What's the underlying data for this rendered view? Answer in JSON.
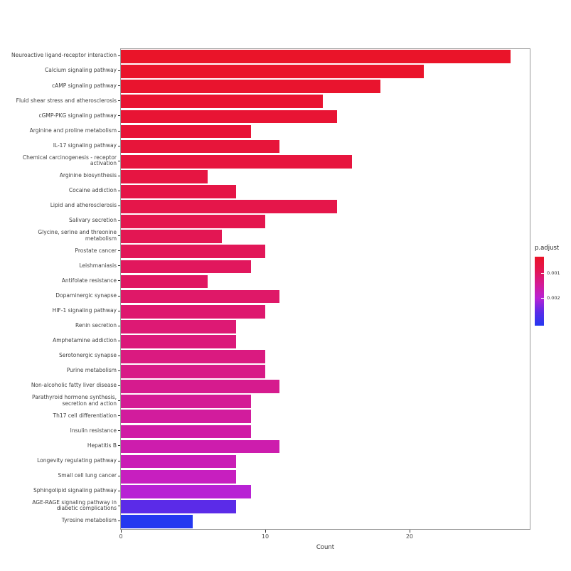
{
  "chart_data": {
    "type": "bar",
    "orientation": "horizontal",
    "title": "",
    "xlabel": "Count",
    "ylabel": "",
    "xlim": [
      0,
      28.33
    ],
    "x_ticks": [
      0,
      10,
      20
    ],
    "grid": false,
    "legend_position": "right",
    "categories": [
      "Neuroactive ligand-receptor interaction",
      "Calcium signaling pathway",
      "cAMP signaling pathway",
      "Fluid shear stress and atherosclerosis",
      "cGMP-PKG signaling pathway",
      "Arginine and proline metabolism",
      "IL-17 signaling pathway",
      "Chemical carcinogenesis - receptor activation",
      "Arginine biosynthesis",
      "Cocaine addiction",
      "Lipid and atherosclerosis",
      "Salivary secretion",
      "Glycine, serine and threonine metabolism",
      "Prostate cancer",
      "Leishmaniasis",
      "Antifolate resistance",
      "Dopaminergic synapse",
      "HIF-1 signaling pathway",
      "Renin secretion",
      "Amphetamine addiction",
      "Serotonergic synapse",
      "Purine metabolism",
      "Non-alcoholic fatty liver disease",
      "Parathyroid hormone synthesis, secretion and action",
      "Th17 cell differentiation",
      "Insulin resistance",
      "Hepatitis B",
      "Longevity regulating pathway",
      "Small cell lung cancer",
      "Sphingolipid signaling pathway",
      "AGE-RAGE signaling pathway in diabetic complications",
      "Tyrosine metabolism"
    ],
    "values": [
      27,
      21,
      18,
      14,
      15,
      9,
      11,
      16,
      6,
      8,
      15,
      10,
      7,
      10,
      9,
      6,
      11,
      10,
      8,
      8,
      10,
      10,
      11,
      9,
      9,
      9,
      11,
      8,
      8,
      9,
      8,
      5
    ],
    "colors": [
      "#EA1429",
      "#EA142B",
      "#E9142E",
      "#E91431",
      "#E81434",
      "#E81437",
      "#E7153A",
      "#E7153E",
      "#E61542",
      "#E51546",
      "#E5164A",
      "#E4164E",
      "#E31653",
      "#E21758",
      "#E1175D",
      "#E01762",
      "#DF1868",
      "#DE186E",
      "#DD1974",
      "#DB197A",
      "#DA1A80",
      "#D81A87",
      "#D61B8E",
      "#D41B95",
      "#D21C9D",
      "#D01CA5",
      "#CD1DAD",
      "#CA1EB6",
      "#C71FBF",
      "#B822D4",
      "#5B2BE8",
      "#2438F0"
    ],
    "legend": {
      "title": "p.adjust",
      "gradient": [
        "#EA1429",
        "#E31653",
        "#D41B95",
        "#B822D4",
        "#5B2BE8",
        "#2438F0"
      ],
      "ticks": [
        {
          "label": "0.001",
          "pos": 0.24
        },
        {
          "label": "0.002",
          "pos": 0.6
        }
      ]
    }
  }
}
